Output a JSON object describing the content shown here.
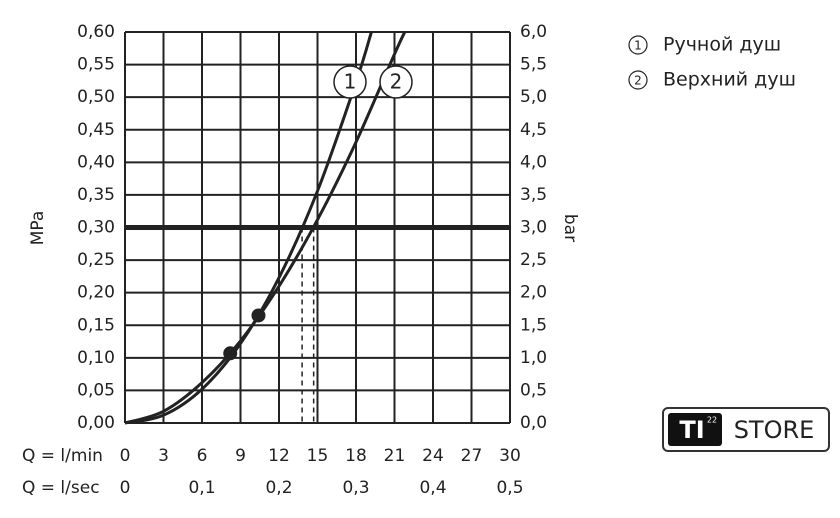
{
  "chart_data": {
    "type": "line",
    "ylabel": "MPa",
    "y2label": "bar",
    "xlabel": "Q = l/min",
    "x2label": "Q = l/sec",
    "xlim": [
      0,
      30
    ],
    "xticks": [
      0,
      3,
      6,
      9,
      12,
      15,
      18,
      21,
      24,
      27,
      30
    ],
    "x2lim": [
      0,
      0.5
    ],
    "x2ticks": [
      0,
      {
        "value": 0.1,
        "label": "0,1"
      },
      {
        "value": 0.2,
        "label": "0,2"
      },
      {
        "value": 0.3,
        "label": "0,3"
      },
      {
        "value": 0.4,
        "label": "0,4"
      },
      {
        "value": 0.5,
        "label": "0,5"
      }
    ],
    "ylim": [
      0,
      0.6
    ],
    "yticks": [
      {
        "value": 0,
        "label": "0,00"
      },
      {
        "value": 0.05,
        "label": "0,05"
      },
      {
        "value": 0.1,
        "label": "0,10"
      },
      {
        "value": 0.15,
        "label": "0,15"
      },
      {
        "value": 0.2,
        "label": "0,20"
      },
      {
        "value": 0.25,
        "label": "0,25"
      },
      {
        "value": 0.3,
        "label": "0,30"
      },
      {
        "value": 0.35,
        "label": "0,35"
      },
      {
        "value": 0.4,
        "label": "0,40"
      },
      {
        "value": 0.45,
        "label": "0,45"
      },
      {
        "value": 0.5,
        "label": "0,50"
      },
      {
        "value": 0.55,
        "label": "0,55"
      },
      {
        "value": 0.6,
        "label": "0,60"
      }
    ],
    "y2lim": [
      0,
      6
    ],
    "y2ticks": [
      {
        "value": 0,
        "label": "0,0"
      },
      {
        "value": 0.5,
        "label": "0,5"
      },
      {
        "value": 1,
        "label": "1,0"
      },
      {
        "value": 1.5,
        "label": "1,5"
      },
      {
        "value": 2,
        "label": "2,0"
      },
      {
        "value": 2.5,
        "label": "2,5"
      },
      {
        "value": 3,
        "label": "3,0"
      },
      {
        "value": 3.5,
        "label": "3,5"
      },
      {
        "value": 4,
        "label": "4,0"
      },
      {
        "value": 4.5,
        "label": "4,5"
      },
      {
        "value": 5,
        "label": "5,0"
      },
      {
        "value": 5.5,
        "label": "5,5"
      },
      {
        "value": 6,
        "label": "6,0"
      }
    ],
    "grid": true,
    "reference_line": 0.3,
    "series": [
      {
        "name": "Ручной душ",
        "label": "1",
        "color": "#222222",
        "x": [
          0,
          3,
          6,
          9,
          12,
          15,
          18,
          19.2
        ],
        "values": [
          0,
          0.012,
          0.052,
          0.122,
          0.223,
          0.356,
          0.523,
          0.6
        ],
        "point": {
          "x": 10.4,
          "y": 0.165
        },
        "crossing": 13.8
      },
      {
        "name": "Верхний душ",
        "label": "2",
        "color": "#222222",
        "x": [
          0,
          3,
          6,
          9,
          12,
          15,
          18,
          21,
          21.8
        ],
        "values": [
          0,
          0.018,
          0.062,
          0.126,
          0.21,
          0.312,
          0.431,
          0.566,
          0.6
        ],
        "point": {
          "x": 8.2,
          "y": 0.107
        },
        "crossing": 14.7
      }
    ]
  },
  "logo": {
    "brand": "TI",
    "number": "22",
    "text": "STORE"
  }
}
